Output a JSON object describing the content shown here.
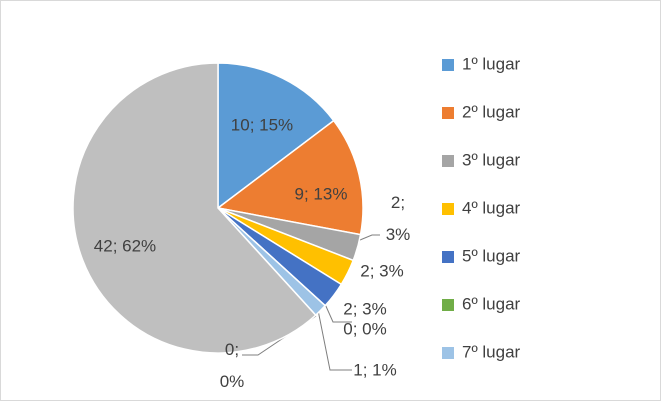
{
  "chart_data": {
    "type": "pie",
    "categories": [
      "1º lugar",
      "2º lugar",
      "3º lugar",
      "4º lugar",
      "5º lugar",
      "6º lugar",
      "7º lugar",
      null,
      null
    ],
    "values": [
      10,
      9,
      2,
      2,
      2,
      0,
      1,
      0,
      42
    ],
    "value_labels": [
      "10; 15%",
      "9; 13%",
      "2; 3%",
      "2; 3%",
      "2; 3%",
      "0; 0%",
      "1; 1%",
      "0; 0%",
      "42; 62%"
    ],
    "colors": [
      "#5b9bd5",
      "#ed7d31",
      "#a5a5a5",
      "#ffc000",
      "#4472c4",
      "#70ad47",
      "#9dc3e6",
      "#c55a11",
      "#bfbfbf"
    ],
    "legend": "right"
  }
}
